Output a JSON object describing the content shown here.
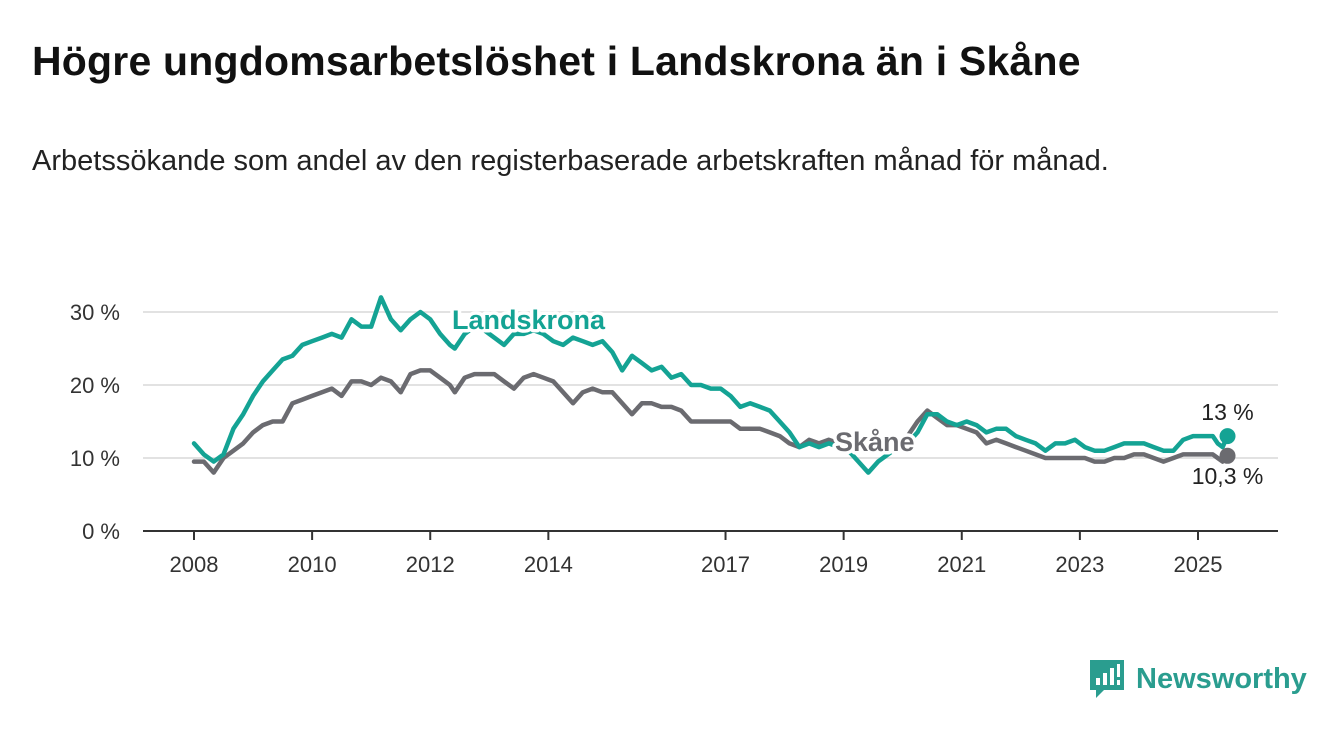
{
  "title": "Högre ungdomsarbetslöshet i Landskrona än i Skåne",
  "subtitle": "Arbetssökande som andel av den registerbaserade arbetskraften månad för månad.",
  "brand": {
    "name": "Newsworthy",
    "color": "#2a9d8f"
  },
  "chart_data": {
    "type": "line",
    "x_ticks": [
      "2008",
      "2010",
      "2012",
      "2014",
      "2017",
      "2019",
      "2021",
      "2023",
      "2025"
    ],
    "y_ticks": [
      "0 %",
      "10 %",
      "20 %",
      "30 %"
    ],
    "ylim": [
      0,
      30
    ],
    "grid": true,
    "series": [
      {
        "name": "Landskrona",
        "color": "#14a394",
        "end_label": "13 %",
        "points": [
          [
            "2008-01",
            12
          ],
          [
            "2008-03",
            10.5
          ],
          [
            "2008-05",
            9.5
          ],
          [
            "2008-07",
            10.5
          ],
          [
            "2008-09",
            14
          ],
          [
            "2008-11",
            16
          ],
          [
            "2009-01",
            18.5
          ],
          [
            "2009-03",
            20.5
          ],
          [
            "2009-05",
            22
          ],
          [
            "2009-07",
            23.5
          ],
          [
            "2009-09",
            24
          ],
          [
            "2009-11",
            25.5
          ],
          [
            "2010-01",
            26
          ],
          [
            "2010-03",
            26.5
          ],
          [
            "2010-05",
            27
          ],
          [
            "2010-07",
            26.5
          ],
          [
            "2010-09",
            29
          ],
          [
            "2010-11",
            28
          ],
          [
            "2011-01",
            28
          ],
          [
            "2011-03",
            32
          ],
          [
            "2011-05",
            29
          ],
          [
            "2011-07",
            27.5
          ],
          [
            "2011-09",
            29
          ],
          [
            "2011-11",
            30
          ],
          [
            "2012-01",
            29
          ],
          [
            "2012-03",
            27
          ],
          [
            "2012-05",
            25.5
          ],
          [
            "2012-06",
            25
          ],
          [
            "2012-08",
            27
          ],
          [
            "2012-10",
            28
          ],
          [
            "2012-12",
            27.5
          ],
          [
            "2013-02",
            26.5
          ],
          [
            "2013-04",
            25.5
          ],
          [
            "2013-06",
            27
          ],
          [
            "2013-08",
            27
          ],
          [
            "2013-10",
            27.5
          ],
          [
            "2013-12",
            27
          ],
          [
            "2014-02",
            26
          ],
          [
            "2014-04",
            25.5
          ],
          [
            "2014-06",
            26.5
          ],
          [
            "2014-08",
            26
          ],
          [
            "2014-10",
            25.5
          ],
          [
            "2014-12",
            26
          ],
          [
            "2015-02",
            24.5
          ],
          [
            "2015-04",
            22
          ],
          [
            "2015-06",
            24
          ],
          [
            "2015-08",
            23
          ],
          [
            "2015-10",
            22
          ],
          [
            "2015-12",
            22.5
          ],
          [
            "2016-02",
            21
          ],
          [
            "2016-04",
            21.5
          ],
          [
            "2016-06",
            20
          ],
          [
            "2016-08",
            20
          ],
          [
            "2016-10",
            19.5
          ],
          [
            "2016-12",
            19.5
          ],
          [
            "2017-02",
            18.5
          ],
          [
            "2017-04",
            17
          ],
          [
            "2017-06",
            17.5
          ],
          [
            "2017-08",
            17
          ],
          [
            "2017-10",
            16.5
          ],
          [
            "2017-12",
            15
          ],
          [
            "2018-02",
            13.5
          ],
          [
            "2018-04",
            11.5
          ],
          [
            "2018-06",
            12
          ],
          [
            "2018-08",
            11.5
          ],
          [
            "2018-10",
            12
          ],
          [
            "2018-12",
            11.5
          ],
          [
            "2019-02",
            11
          ],
          [
            "2019-04",
            9.5
          ],
          [
            "2019-06",
            8
          ],
          [
            "2019-08",
            9.5
          ],
          [
            "2019-10",
            10.5
          ],
          [
            "2019-12",
            11.5
          ],
          [
            "2020-02",
            12
          ],
          [
            "2020-04",
            13.5
          ],
          [
            "2020-06",
            16
          ],
          [
            "2020-08",
            16
          ],
          [
            "2020-10",
            15
          ],
          [
            "2020-12",
            14.5
          ],
          [
            "2021-02",
            15
          ],
          [
            "2021-04",
            14.5
          ],
          [
            "2021-06",
            13.5
          ],
          [
            "2021-08",
            14
          ],
          [
            "2021-10",
            14
          ],
          [
            "2021-12",
            13
          ],
          [
            "2022-02",
            12.5
          ],
          [
            "2022-04",
            12
          ],
          [
            "2022-06",
            11
          ],
          [
            "2022-08",
            12
          ],
          [
            "2022-10",
            12
          ],
          [
            "2022-12",
            12.5
          ],
          [
            "2023-02",
            11.5
          ],
          [
            "2023-04",
            11
          ],
          [
            "2023-06",
            11
          ],
          [
            "2023-08",
            11.5
          ],
          [
            "2023-10",
            12
          ],
          [
            "2023-12",
            12
          ],
          [
            "2024-02",
            12
          ],
          [
            "2024-04",
            11.5
          ],
          [
            "2024-06",
            11
          ],
          [
            "2024-08",
            11
          ],
          [
            "2024-10",
            12.5
          ],
          [
            "2024-12",
            13
          ],
          [
            "2025-02",
            13
          ],
          [
            "2025-04",
            13
          ],
          [
            "2025-05",
            12
          ],
          [
            "2025-06",
            11.5
          ],
          [
            "2025-07",
            13
          ]
        ]
      },
      {
        "name": "Skåne",
        "color": "#6b6b70",
        "end_label": "10,3 %",
        "points": [
          [
            "2008-01",
            9.5
          ],
          [
            "2008-03",
            9.5
          ],
          [
            "2008-05",
            8
          ],
          [
            "2008-07",
            10
          ],
          [
            "2008-09",
            11
          ],
          [
            "2008-11",
            12
          ],
          [
            "2009-01",
            13.5
          ],
          [
            "2009-03",
            14.5
          ],
          [
            "2009-05",
            15
          ],
          [
            "2009-07",
            15
          ],
          [
            "2009-09",
            17.5
          ],
          [
            "2009-11",
            18
          ],
          [
            "2010-01",
            18.5
          ],
          [
            "2010-03",
            19
          ],
          [
            "2010-05",
            19.5
          ],
          [
            "2010-07",
            18.5
          ],
          [
            "2010-09",
            20.5
          ],
          [
            "2010-11",
            20.5
          ],
          [
            "2011-01",
            20
          ],
          [
            "2011-03",
            21
          ],
          [
            "2011-05",
            20.5
          ],
          [
            "2011-07",
            19
          ],
          [
            "2011-09",
            21.5
          ],
          [
            "2011-11",
            22
          ],
          [
            "2012-01",
            22
          ],
          [
            "2012-03",
            21
          ],
          [
            "2012-05",
            20
          ],
          [
            "2012-06",
            19
          ],
          [
            "2012-08",
            21
          ],
          [
            "2012-10",
            21.5
          ],
          [
            "2012-12",
            21.5
          ],
          [
            "2013-02",
            21.5
          ],
          [
            "2013-04",
            20.5
          ],
          [
            "2013-06",
            19.5
          ],
          [
            "2013-08",
            21
          ],
          [
            "2013-10",
            21.5
          ],
          [
            "2013-12",
            21
          ],
          [
            "2014-02",
            20.5
          ],
          [
            "2014-04",
            19
          ],
          [
            "2014-06",
            17.5
          ],
          [
            "2014-08",
            19
          ],
          [
            "2014-10",
            19.5
          ],
          [
            "2014-12",
            19
          ],
          [
            "2015-02",
            19
          ],
          [
            "2015-04",
            17.5
          ],
          [
            "2015-06",
            16
          ],
          [
            "2015-08",
            17.5
          ],
          [
            "2015-10",
            17.5
          ],
          [
            "2015-12",
            17
          ],
          [
            "2016-02",
            17
          ],
          [
            "2016-04",
            16.5
          ],
          [
            "2016-06",
            15
          ],
          [
            "2016-08",
            15
          ],
          [
            "2016-10",
            15
          ],
          [
            "2016-12",
            15
          ],
          [
            "2017-02",
            15
          ],
          [
            "2017-04",
            14
          ],
          [
            "2017-06",
            14
          ],
          [
            "2017-08",
            14
          ],
          [
            "2017-10",
            13.5
          ],
          [
            "2017-12",
            13
          ],
          [
            "2018-02",
            12
          ],
          [
            "2018-04",
            11.5
          ],
          [
            "2018-06",
            12.5
          ],
          [
            "2018-08",
            12
          ],
          [
            "2018-10",
            12.5
          ],
          [
            "2018-12",
            12
          ],
          [
            "2019-02",
            12
          ],
          [
            "2019-04",
            11.5
          ],
          [
            "2019-06",
            11
          ],
          [
            "2019-08",
            11.5
          ],
          [
            "2019-10",
            12
          ],
          [
            "2019-12",
            12.5
          ],
          [
            "2020-02",
            13
          ],
          [
            "2020-04",
            15
          ],
          [
            "2020-06",
            16.5
          ],
          [
            "2020-08",
            15.5
          ],
          [
            "2020-10",
            14.5
          ],
          [
            "2020-12",
            14.5
          ],
          [
            "2021-02",
            14
          ],
          [
            "2021-04",
            13.5
          ],
          [
            "2021-06",
            12
          ],
          [
            "2021-08",
            12.5
          ],
          [
            "2021-10",
            12
          ],
          [
            "2021-12",
            11.5
          ],
          [
            "2022-02",
            11
          ],
          [
            "2022-04",
            10.5
          ],
          [
            "2022-06",
            10
          ],
          [
            "2022-08",
            10
          ],
          [
            "2022-10",
            10
          ],
          [
            "2022-12",
            10
          ],
          [
            "2023-02",
            10
          ],
          [
            "2023-04",
            9.5
          ],
          [
            "2023-06",
            9.5
          ],
          [
            "2023-08",
            10
          ],
          [
            "2023-10",
            10
          ],
          [
            "2023-12",
            10.5
          ],
          [
            "2024-02",
            10.5
          ],
          [
            "2024-04",
            10
          ],
          [
            "2024-06",
            9.5
          ],
          [
            "2024-08",
            10
          ],
          [
            "2024-10",
            10.5
          ],
          [
            "2024-12",
            10.5
          ],
          [
            "2025-02",
            10.5
          ],
          [
            "2025-04",
            10.5
          ],
          [
            "2025-05",
            10
          ],
          [
            "2025-06",
            9.5
          ],
          [
            "2025-07",
            10.3
          ]
        ]
      }
    ]
  }
}
